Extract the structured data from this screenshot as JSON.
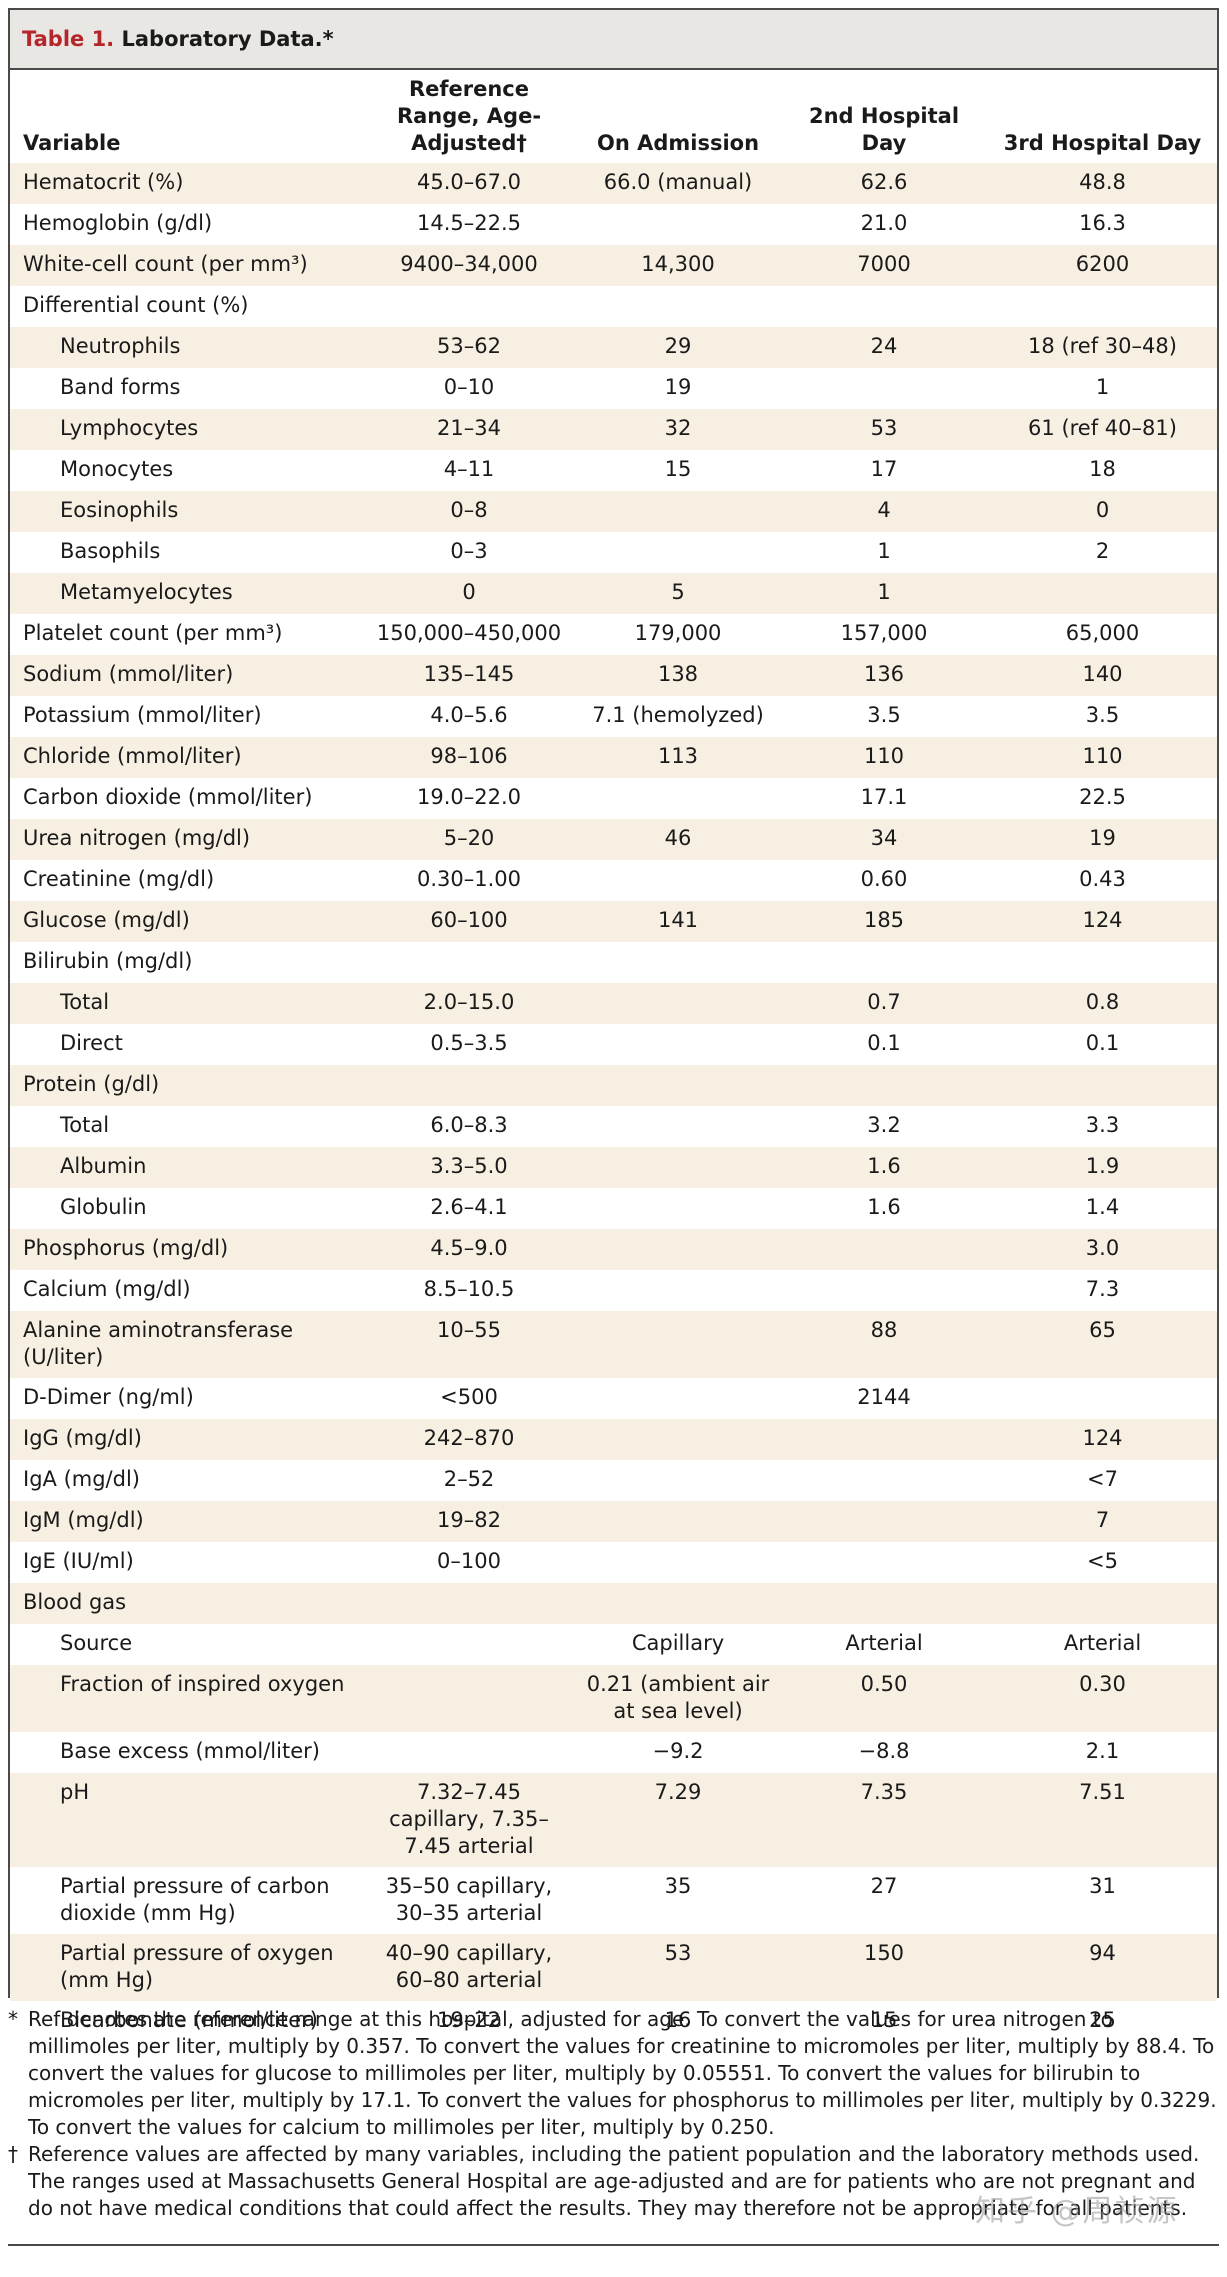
{
  "table": {
    "label_number": "Table 1.",
    "label_text": "Laboratory Data.*",
    "headers": [
      "Variable",
      "Reference Range, Age-Adjusted†",
      "On Admission",
      "2nd Hospital Day",
      "3rd Hospital Day"
    ],
    "rows": [
      {
        "variable": "Hematocrit (%)",
        "indent": false,
        "ref": "45.0–67.0",
        "adm": "66.0 (manual)",
        "day2": "62.6",
        "day3": "48.8"
      },
      {
        "variable": "Hemoglobin (g/dl)",
        "indent": false,
        "ref": "14.5–22.5",
        "adm": "",
        "day2": "21.0",
        "day3": "16.3"
      },
      {
        "variable": "White-cell count (per mm³)",
        "indent": false,
        "ref": "9400–34,000",
        "adm": "14,300",
        "day2": "7000",
        "day3": "6200"
      },
      {
        "variable": "Differential count (%)",
        "indent": false,
        "ref": "",
        "adm": "",
        "day2": "",
        "day3": ""
      },
      {
        "variable": "Neutrophils",
        "indent": true,
        "ref": "53–62",
        "adm": "29",
        "day2": "24",
        "day3": "18 (ref 30–48)"
      },
      {
        "variable": "Band forms",
        "indent": true,
        "ref": "0–10",
        "adm": "19",
        "day2": "",
        "day3": "1"
      },
      {
        "variable": "Lymphocytes",
        "indent": true,
        "ref": "21–34",
        "adm": "32",
        "day2": "53",
        "day3": "61 (ref 40–81)"
      },
      {
        "variable": "Monocytes",
        "indent": true,
        "ref": "4–11",
        "adm": "15",
        "day2": "17",
        "day3": "18"
      },
      {
        "variable": "Eosinophils",
        "indent": true,
        "ref": "0–8",
        "adm": "",
        "day2": "4",
        "day3": "0"
      },
      {
        "variable": "Basophils",
        "indent": true,
        "ref": "0–3",
        "adm": "",
        "day2": "1",
        "day3": "2"
      },
      {
        "variable": "Metamyelocytes",
        "indent": true,
        "ref": "0",
        "adm": "5",
        "day2": "1",
        "day3": ""
      },
      {
        "variable": "Platelet count (per mm³)",
        "indent": false,
        "ref": "150,000–450,000",
        "adm": "179,000",
        "day2": "157,000",
        "day3": "65,000"
      },
      {
        "variable": "Sodium (mmol/liter)",
        "indent": false,
        "ref": "135–145",
        "adm": "138",
        "day2": "136",
        "day3": "140"
      },
      {
        "variable": "Potassium (mmol/liter)",
        "indent": false,
        "ref": "4.0–5.6",
        "adm": "7.1 (hemolyzed)",
        "day2": "3.5",
        "day3": "3.5"
      },
      {
        "variable": "Chloride (mmol/liter)",
        "indent": false,
        "ref": "98–106",
        "adm": "113",
        "day2": "110",
        "day3": "110"
      },
      {
        "variable": "Carbon dioxide (mmol/liter)",
        "indent": false,
        "ref": "19.0–22.0",
        "adm": "",
        "day2": "17.1",
        "day3": "22.5"
      },
      {
        "variable": "Urea nitrogen (mg/dl)",
        "indent": false,
        "ref": "5–20",
        "adm": "46",
        "day2": "34",
        "day3": "19"
      },
      {
        "variable": "Creatinine (mg/dl)",
        "indent": false,
        "ref": "0.30–1.00",
        "adm": "",
        "day2": "0.60",
        "day3": "0.43"
      },
      {
        "variable": "Glucose (mg/dl)",
        "indent": false,
        "ref": "60–100",
        "adm": "141",
        "day2": "185",
        "day3": "124"
      },
      {
        "variable": "Bilirubin (mg/dl)",
        "indent": false,
        "ref": "",
        "adm": "",
        "day2": "",
        "day3": ""
      },
      {
        "variable": "Total",
        "indent": true,
        "ref": "2.0–15.0",
        "adm": "",
        "day2": "0.7",
        "day3": "0.8"
      },
      {
        "variable": "Direct",
        "indent": true,
        "ref": "0.5–3.5",
        "adm": "",
        "day2": "0.1",
        "day3": "0.1"
      },
      {
        "variable": "Protein (g/dl)",
        "indent": false,
        "ref": "",
        "adm": "",
        "day2": "",
        "day3": ""
      },
      {
        "variable": "Total",
        "indent": true,
        "ref": "6.0–8.3",
        "adm": "",
        "day2": "3.2",
        "day3": "3.3"
      },
      {
        "variable": "Albumin",
        "indent": true,
        "ref": "3.3–5.0",
        "adm": "",
        "day2": "1.6",
        "day3": "1.9"
      },
      {
        "variable": "Globulin",
        "indent": true,
        "ref": "2.6–4.1",
        "adm": "",
        "day2": "1.6",
        "day3": "1.4"
      },
      {
        "variable": "Phosphorus (mg/dl)",
        "indent": false,
        "ref": "4.5–9.0",
        "adm": "",
        "day2": "",
        "day3": "3.0"
      },
      {
        "variable": "Calcium (mg/dl)",
        "indent": false,
        "ref": "8.5–10.5",
        "adm": "",
        "day2": "",
        "day3": "7.3"
      },
      {
        "variable": "Alanine aminotransferase (U/liter)",
        "indent": false,
        "ref": "10–55",
        "adm": "",
        "day2": "88",
        "day3": "65"
      },
      {
        "variable": "D-Dimer (ng/ml)",
        "indent": false,
        "ref": "<500",
        "adm": "",
        "day2": "2144",
        "day3": ""
      },
      {
        "variable": "IgG (mg/dl)",
        "indent": false,
        "ref": "242–870",
        "adm": "",
        "day2": "",
        "day3": "124"
      },
      {
        "variable": "IgA (mg/dl)",
        "indent": false,
        "ref": "2–52",
        "adm": "",
        "day2": "",
        "day3": "<7"
      },
      {
        "variable": "IgM (mg/dl)",
        "indent": false,
        "ref": "19–82",
        "adm": "",
        "day2": "",
        "day3": "7"
      },
      {
        "variable": "IgE (IU/ml)",
        "indent": false,
        "ref": "0–100",
        "adm": "",
        "day2": "",
        "day3": "<5"
      },
      {
        "variable": "Blood gas",
        "indent": false,
        "ref": "",
        "adm": "",
        "day2": "",
        "day3": ""
      },
      {
        "variable": "Source",
        "indent": true,
        "ref": "",
        "adm": "Capillary",
        "day2": "Arterial",
        "day3": "Arterial"
      },
      {
        "variable": "Fraction of inspired oxygen",
        "indent": true,
        "ref": "",
        "adm": "0.21 (ambient air at sea level)",
        "day2": "0.50",
        "day3": "0.30"
      },
      {
        "variable": "Base excess (mmol/liter)",
        "indent": true,
        "ref": "",
        "adm": "−9.2",
        "day2": "−8.8",
        "day3": "2.1"
      },
      {
        "variable": "pH",
        "indent": true,
        "ref": "7.32–7.45 capillary, 7.35–7.45 arterial",
        "adm": "7.29",
        "day2": "7.35",
        "day3": "7.51"
      },
      {
        "variable": "Partial pressure of carbon dioxide (mm Hg)",
        "indent": true,
        "ref": "35–50 capillary, 30–35 arterial",
        "adm": "35",
        "day2": "27",
        "day3": "31"
      },
      {
        "variable": "Partial pressure of oxygen (mm Hg)",
        "indent": true,
        "ref": "40–90 capillary, 60–80 arterial",
        "adm": "53",
        "day2": "150",
        "day3": "94"
      },
      {
        "variable": "Bicarbonate (mmol/liter)",
        "indent": true,
        "ref": "19–22",
        "adm": "16",
        "day2": "15",
        "day3": "25"
      }
    ]
  },
  "footnotes": [
    {
      "mark": "*",
      "text": "Ref denotes the reference range at this hospital, adjusted for age. To convert the values for urea nitrogen to millimoles per liter, multiply by 0.357. To convert the values for creatinine to micromoles per liter, multiply by 88.4. To convert the values for glucose to millimoles per liter, multiply by 0.05551. To convert the values for bilirubin to micromoles per liter, multiply by 17.1. To convert the values for phosphorus to millimoles per liter, multiply by 0.3229. To convert the values for calcium to millimoles per liter, multiply by 0.250."
    },
    {
      "mark": "†",
      "text": "Reference values are affected by many variables, including the patient population and the laboratory methods used. The ranges used at Massachusetts General Hospital are age-adjusted and are for patients who are not pregnant and do not have medical conditions that could affect the results. They may therefore not be appropriate for all patients."
    }
  ],
  "watermark": "知乎 @周祯源",
  "colors": {
    "label_red": "#b5262b",
    "stripe": "#f7f0e2",
    "header_bg": "#e9e7e4"
  }
}
